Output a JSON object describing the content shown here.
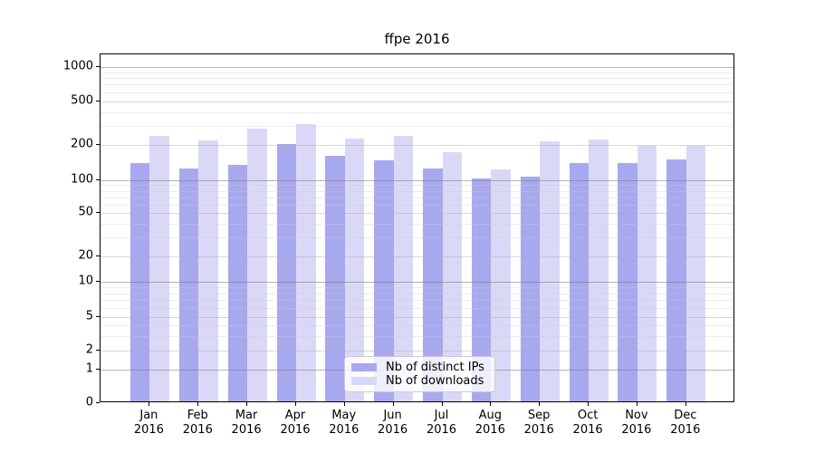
{
  "title": "ffpe 2016",
  "chart_data": {
    "type": "bar",
    "title": "ffpe 2016",
    "categories": [
      "Jan",
      "Feb",
      "Mar",
      "Apr",
      "May",
      "Jun",
      "Jul",
      "Aug",
      "Sep",
      "Oct",
      "Nov",
      "Dec"
    ],
    "year_label": "2016",
    "series": [
      {
        "name": "Nb of distinct IPs",
        "color": "#a8a8ef",
        "values": [
          136,
          122,
          130,
          198,
          157,
          143,
          122,
          100,
          104,
          135,
          136,
          146
        ]
      },
      {
        "name": "Nb of downloads",
        "color": "#d9d9f7",
        "values": [
          232,
          212,
          272,
          301,
          221,
          233,
          167,
          120,
          208,
          218,
          190,
          192
        ]
      }
    ],
    "yscale": "log-with-zero-baseline",
    "yticks": [
      {
        "label": "1000",
        "value": 1000
      },
      {
        "label": "500",
        "value": 500
      },
      {
        "label": "200",
        "value": 200
      },
      {
        "label": "100",
        "value": 100
      },
      {
        "label": "50",
        "value": 50
      },
      {
        "label": "20",
        "value": 20
      },
      {
        "label": "10",
        "value": 10
      },
      {
        "label": "5",
        "value": 5
      },
      {
        "label": "2",
        "value": 2
      },
      {
        "label": "1",
        "value": 1
      },
      {
        "label": "0",
        "value": 0
      }
    ],
    "ylim": [
      0,
      1200
    ],
    "grid": "on",
    "legend_position": "lower-center",
    "colors": {
      "distinct_ips_bar": "#a8a8ef",
      "downloads_bar": "#d9d9f7",
      "major_gridline": "#a9a9a9",
      "minor_gridline": "#e6e6e6",
      "axis": "#000000",
      "background": "#ffffff"
    }
  }
}
